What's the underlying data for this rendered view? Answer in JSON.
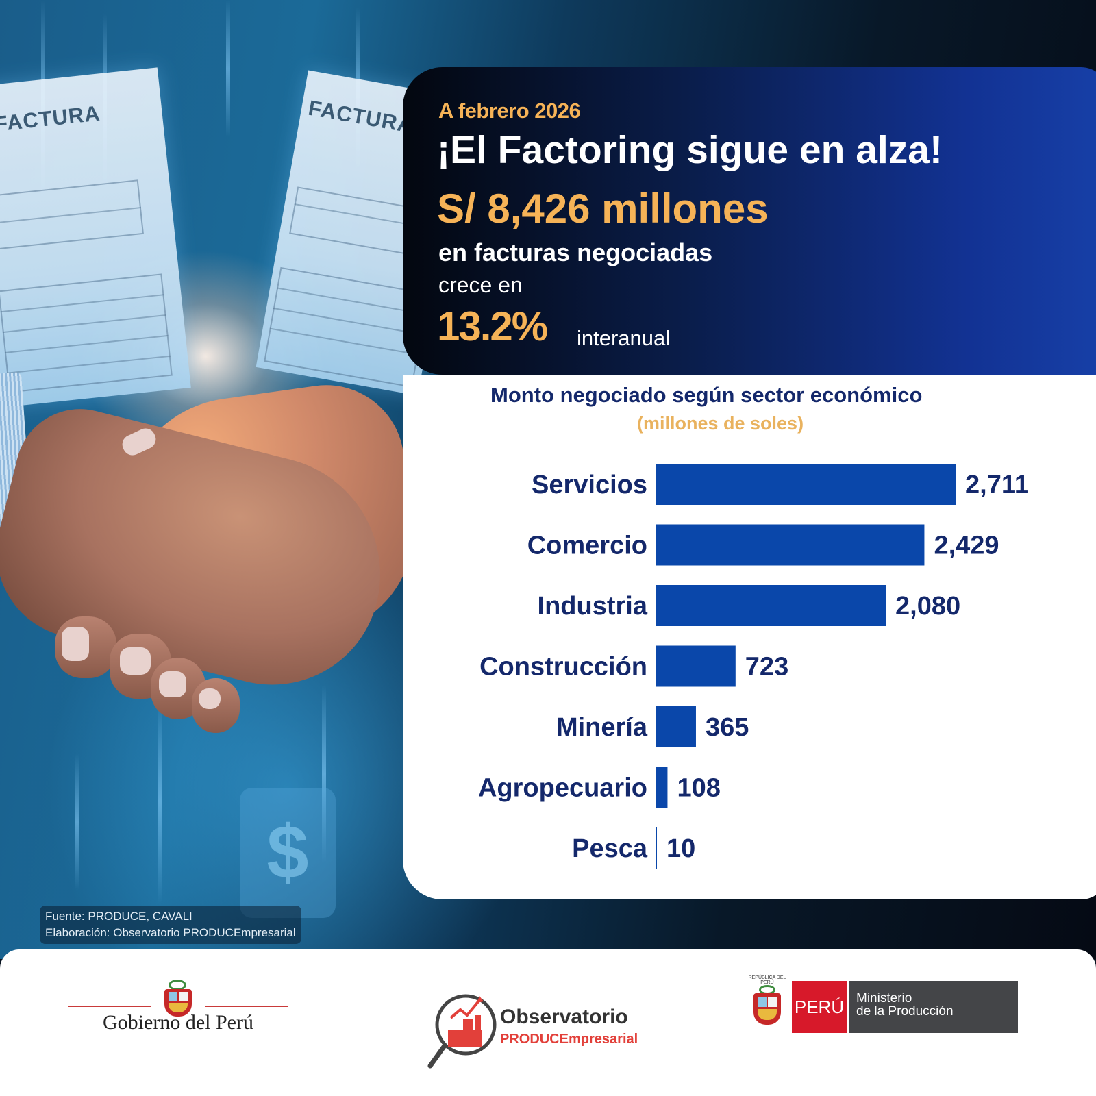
{
  "background": {
    "invoice_labels": [
      "FACTURA",
      "FACTURA"
    ],
    "symbol": "$"
  },
  "header": {
    "date": "A febrero 2026",
    "title": "¡El Factoring sigue en alza!",
    "amount": "S/ 8,426 millones",
    "subtitle": "en facturas negociadas",
    "growth_text": "crece en",
    "growth_pct": "13.2%",
    "growth_suffix": "interanual"
  },
  "colors": {
    "accent_gold": "#f6b357",
    "bar_blue": "#0a47aa",
    "navy_text": "#14286b",
    "subtitle_gold": "#e9b25e"
  },
  "chart_data": {
    "type": "bar",
    "orientation": "horizontal",
    "title": "Monto negociado según sector económico",
    "subtitle": "(millones de soles)",
    "categories": [
      "Servicios",
      "Comercio",
      "Industria",
      "Construcción",
      "Minería",
      "Agropecuario",
      "Pesca"
    ],
    "values": [
      2711,
      2429,
      2080,
      723,
      365,
      108,
      10
    ],
    "value_labels": [
      "2,711",
      "2,429",
      "2,080",
      "723",
      "365",
      "108",
      "10"
    ],
    "xlabel": "",
    "ylabel": "",
    "xlim": [
      0,
      2711
    ],
    "grid": false,
    "legend": "none"
  },
  "source": {
    "line1": "Fuente: PRODUCE, CAVALI",
    "line2": "Elaboración: Observatorio PRODUCEmpresarial"
  },
  "footer": {
    "gobierno": "Gobierno del Perú",
    "observatorio_name": "Observatorio",
    "observatorio_brand": "PRODUCEmpresarial",
    "republica": "REPÚBLICA DEL PERÚ",
    "peru": "PERÚ",
    "ministerio_line1": "Ministerio",
    "ministerio_line2": "de la Producción"
  }
}
